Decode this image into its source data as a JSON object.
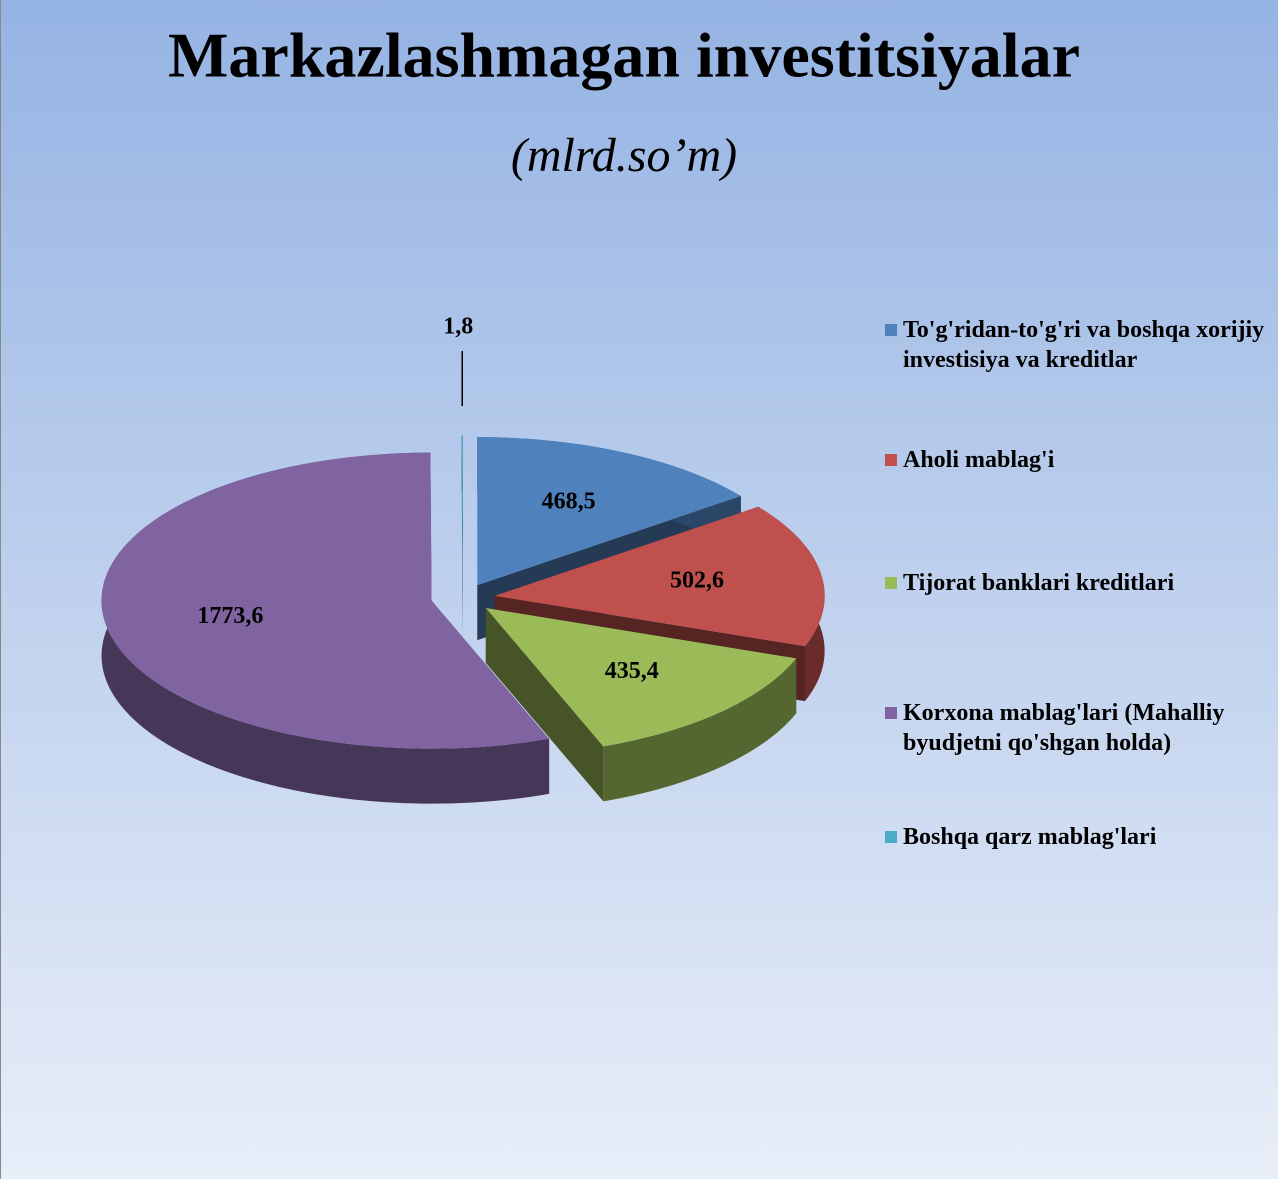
{
  "chart_data": {
    "type": "pie3d",
    "title": "Markazlashmagan investitsiyalar",
    "subtitle": "(mlrd.so’m)",
    "categories": [
      "To'g'ridan-to'g'ri va boshqa xorijiy investisiya va kreditlar",
      "Aholi mablag'i",
      "Tijorat banklari kreditlari",
      "Korxona mablag'lari (Mahalliy byudjetni qo'shgan holda)",
      "Boshqa qarz mablag'lari"
    ],
    "values": [
      468.5,
      502.6,
      435.4,
      1773.6,
      1.8
    ],
    "value_labels": [
      "468,5",
      "502,6",
      "435,4",
      "1773,6",
      "1,8"
    ],
    "colors": [
      "#4f81bd",
      "#c0504d",
      "#9bbb59",
      "#8064a2",
      "#4bacc6"
    ],
    "legend": "right"
  }
}
